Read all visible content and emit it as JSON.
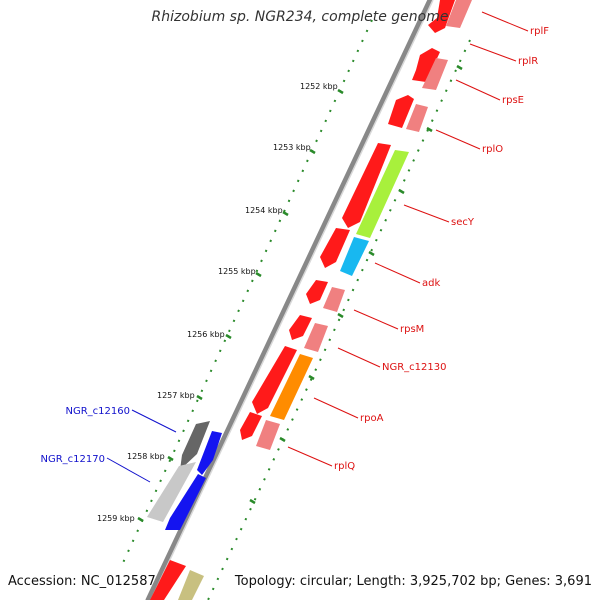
{
  "title": "Rhizobium sp. NGR234, complete genome",
  "accession": "Accession: NC_012587",
  "topology": "Topology: circular; Length: 3,925,702 bp; Genes: 3,691",
  "ticks": [
    {
      "label": "1252 kbp"
    },
    {
      "label": "1253 kbp"
    },
    {
      "label": "1254 kbp"
    },
    {
      "label": "1255 kbp"
    },
    {
      "label": "1256 kbp"
    },
    {
      "label": "1257 kbp"
    },
    {
      "label": "1258 kbp"
    },
    {
      "label": "1259 kbp"
    }
  ],
  "gene_labels_right": [
    "rplF",
    "rplR",
    "rpsE",
    "rplO",
    "secY",
    "adk",
    "rpsM",
    "NGR_c12130",
    "rpoA",
    "rplQ"
  ],
  "gene_labels_left": [
    "NGR_c12160",
    "NGR_c12170"
  ],
  "colors": {
    "backbone": "#777777",
    "label_right": "#dd1111",
    "label_left": "#1111cc",
    "tick": "#2a8a2a",
    "gene_red": "#ff1a1a",
    "gene_pink": "#f08080",
    "gene_green": "#a8f03c",
    "gene_cyan": "#18b8f0",
    "gene_orange": "#ff8c00",
    "gene_blue": "#1414f0",
    "gene_gray": "#666666",
    "gene_lightgray": "#c8c8c8",
    "gene_olive": "#c8c080"
  }
}
